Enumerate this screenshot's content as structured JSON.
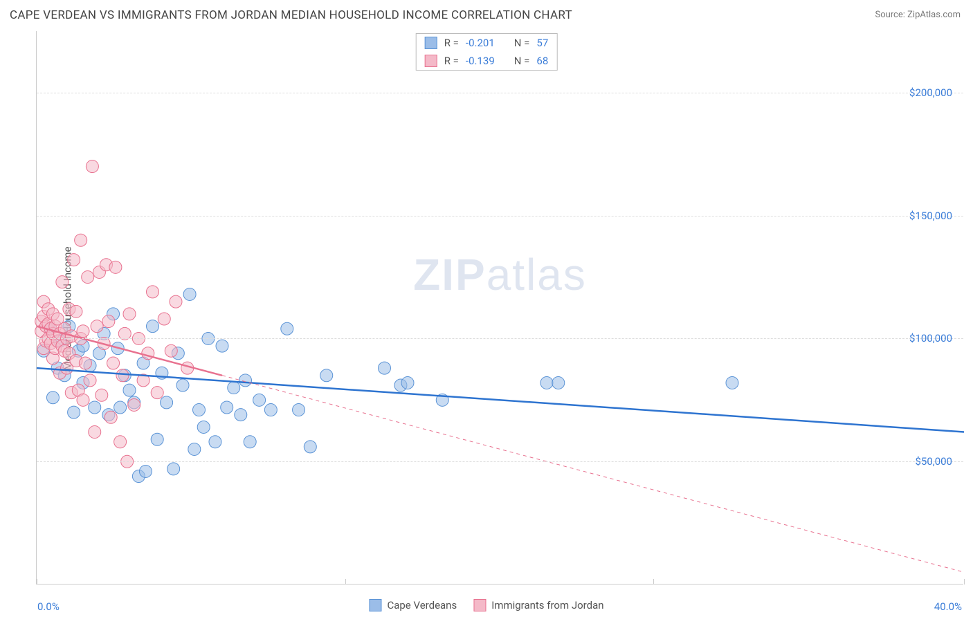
{
  "title": "CAPE VERDEAN VS IMMIGRANTS FROM JORDAN MEDIAN HOUSEHOLD INCOME CORRELATION CHART",
  "source": "Source: ZipAtlas.com",
  "ylabel": "Median Household Income",
  "watermark_1": "ZIP",
  "watermark_2": "atlas",
  "chart": {
    "type": "scatter",
    "xlim": [
      0,
      40
    ],
    "ylim": [
      0,
      225000
    ],
    "x_tick_positions": [
      0,
      13.3,
      26.6,
      40
    ],
    "x_lim_labels": {
      "min": "0.0%",
      "max": "40.0%"
    },
    "y_ticks": [
      {
        "v": 50000,
        "label": "$50,000"
      },
      {
        "v": 100000,
        "label": "$100,000"
      },
      {
        "v": 150000,
        "label": "$150,000"
      },
      {
        "v": 200000,
        "label": "$200,000"
      }
    ],
    "grid_color": "#dddddd",
    "axis_color": "#cccccc",
    "background_color": "#ffffff",
    "tick_label_color": "#3b7dd8",
    "marker_radius": 9,
    "marker_opacity": 0.55,
    "trend_line_width": 2.5,
    "series": [
      {
        "name": "Cape Verdeans",
        "color_fill": "#9bbde8",
        "color_stroke": "#5a93d6",
        "trend_color": "#2e74d0",
        "r": -0.201,
        "n": 57,
        "trend_solid": {
          "x1": 0,
          "y1": 88000,
          "x2": 40,
          "y2": 62000
        },
        "points": [
          [
            0.3,
            95000
          ],
          [
            0.6,
            104000
          ],
          [
            0.7,
            76000
          ],
          [
            0.9,
            88000
          ],
          [
            1.0,
            99000
          ],
          [
            1.2,
            85000
          ],
          [
            1.4,
            105000
          ],
          [
            1.6,
            70000
          ],
          [
            1.8,
            95000
          ],
          [
            2.0,
            82000
          ],
          [
            2.0,
            97000
          ],
          [
            2.3,
            89000
          ],
          [
            2.5,
            72000
          ],
          [
            2.7,
            94000
          ],
          [
            2.9,
            102000
          ],
          [
            3.1,
            69000
          ],
          [
            3.3,
            110000
          ],
          [
            3.5,
            96000
          ],
          [
            3.6,
            72000
          ],
          [
            3.8,
            85000
          ],
          [
            4.0,
            79000
          ],
          [
            4.2,
            74000
          ],
          [
            4.4,
            44000
          ],
          [
            4.6,
            90000
          ],
          [
            4.7,
            46000
          ],
          [
            5.0,
            105000
          ],
          [
            5.2,
            59000
          ],
          [
            5.4,
            86000
          ],
          [
            5.6,
            74000
          ],
          [
            5.9,
            47000
          ],
          [
            6.1,
            94000
          ],
          [
            6.3,
            81000
          ],
          [
            6.6,
            118000
          ],
          [
            6.8,
            55000
          ],
          [
            7.0,
            71000
          ],
          [
            7.2,
            64000
          ],
          [
            7.4,
            100000
          ],
          [
            7.7,
            58000
          ],
          [
            8.0,
            97000
          ],
          [
            8.2,
            72000
          ],
          [
            8.5,
            80000
          ],
          [
            8.8,
            69000
          ],
          [
            9.0,
            83000
          ],
          [
            9.2,
            58000
          ],
          [
            9.6,
            75000
          ],
          [
            10.1,
            71000
          ],
          [
            10.8,
            104000
          ],
          [
            11.3,
            71000
          ],
          [
            11.8,
            56000
          ],
          [
            12.5,
            85000
          ],
          [
            15.0,
            88000
          ],
          [
            15.7,
            81000
          ],
          [
            16.0,
            82000
          ],
          [
            17.5,
            75000
          ],
          [
            22.0,
            82000
          ],
          [
            22.5,
            82000
          ],
          [
            30.0,
            82000
          ]
        ]
      },
      {
        "name": "Immigrants from Jordan",
        "color_fill": "#f4b9c8",
        "color_stroke": "#e8718f",
        "trend_color": "#e8718f",
        "r": -0.139,
        "n": 68,
        "trend_solid": {
          "x1": 0,
          "y1": 105000,
          "x2": 8,
          "y2": 85000
        },
        "trend_dashed": {
          "x1": 8,
          "y1": 85000,
          "x2": 40,
          "y2": 5000
        },
        "points": [
          [
            0.2,
            103000
          ],
          [
            0.2,
            107000
          ],
          [
            0.3,
            96000
          ],
          [
            0.3,
            109000
          ],
          [
            0.3,
            115000
          ],
          [
            0.4,
            99000
          ],
          [
            0.4,
            105000
          ],
          [
            0.5,
            100000
          ],
          [
            0.5,
            106000
          ],
          [
            0.5,
            112000
          ],
          [
            0.6,
            98000
          ],
          [
            0.6,
            104000
          ],
          [
            0.7,
            110000
          ],
          [
            0.7,
            102000
          ],
          [
            0.7,
            92000
          ],
          [
            0.8,
            96000
          ],
          [
            0.8,
            105000
          ],
          [
            0.9,
            99000
          ],
          [
            0.9,
            108000
          ],
          [
            1.0,
            86000
          ],
          [
            1.0,
            102000
          ],
          [
            1.1,
            97000
          ],
          [
            1.1,
            123000
          ],
          [
            1.2,
            95000
          ],
          [
            1.2,
            104000
          ],
          [
            1.3,
            88000
          ],
          [
            1.3,
            100000
          ],
          [
            1.4,
            112000
          ],
          [
            1.4,
            94000
          ],
          [
            1.5,
            78000
          ],
          [
            1.5,
            101000
          ],
          [
            1.6,
            132000
          ],
          [
            1.7,
            91000
          ],
          [
            1.7,
            111000
          ],
          [
            1.8,
            79000
          ],
          [
            1.9,
            140000
          ],
          [
            1.9,
            100000
          ],
          [
            2.0,
            75000
          ],
          [
            2.0,
            103000
          ],
          [
            2.1,
            90000
          ],
          [
            2.2,
            125000
          ],
          [
            2.3,
            83000
          ],
          [
            2.4,
            170000
          ],
          [
            2.5,
            62000
          ],
          [
            2.6,
            105000
          ],
          [
            2.7,
            127000
          ],
          [
            2.8,
            77000
          ],
          [
            2.9,
            98000
          ],
          [
            3.0,
            130000
          ],
          [
            3.1,
            107000
          ],
          [
            3.2,
            68000
          ],
          [
            3.3,
            90000
          ],
          [
            3.4,
            129000
          ],
          [
            3.6,
            58000
          ],
          [
            3.7,
            85000
          ],
          [
            3.8,
            102000
          ],
          [
            3.9,
            50000
          ],
          [
            4.0,
            110000
          ],
          [
            4.2,
            73000
          ],
          [
            4.4,
            100000
          ],
          [
            4.6,
            83000
          ],
          [
            4.8,
            94000
          ],
          [
            5.0,
            119000
          ],
          [
            5.2,
            78000
          ],
          [
            5.5,
            108000
          ],
          [
            5.8,
            95000
          ],
          [
            6.0,
            115000
          ],
          [
            6.5,
            88000
          ]
        ]
      }
    ]
  },
  "stats_box": {
    "rows": [
      {
        "swatch_fill": "#9bbde8",
        "swatch_stroke": "#5a93d6",
        "r_label": "R =",
        "r_val": "-0.201",
        "n_label": "N =",
        "n_val": "57"
      },
      {
        "swatch_fill": "#f4b9c8",
        "swatch_stroke": "#e8718f",
        "r_label": "R =",
        "r_val": "-0.139",
        "n_label": "N =",
        "n_val": "68"
      }
    ]
  },
  "legend": [
    {
      "swatch_fill": "#9bbde8",
      "swatch_stroke": "#5a93d6",
      "label": "Cape Verdeans"
    },
    {
      "swatch_fill": "#f4b9c8",
      "swatch_stroke": "#e8718f",
      "label": "Immigrants from Jordan"
    }
  ]
}
